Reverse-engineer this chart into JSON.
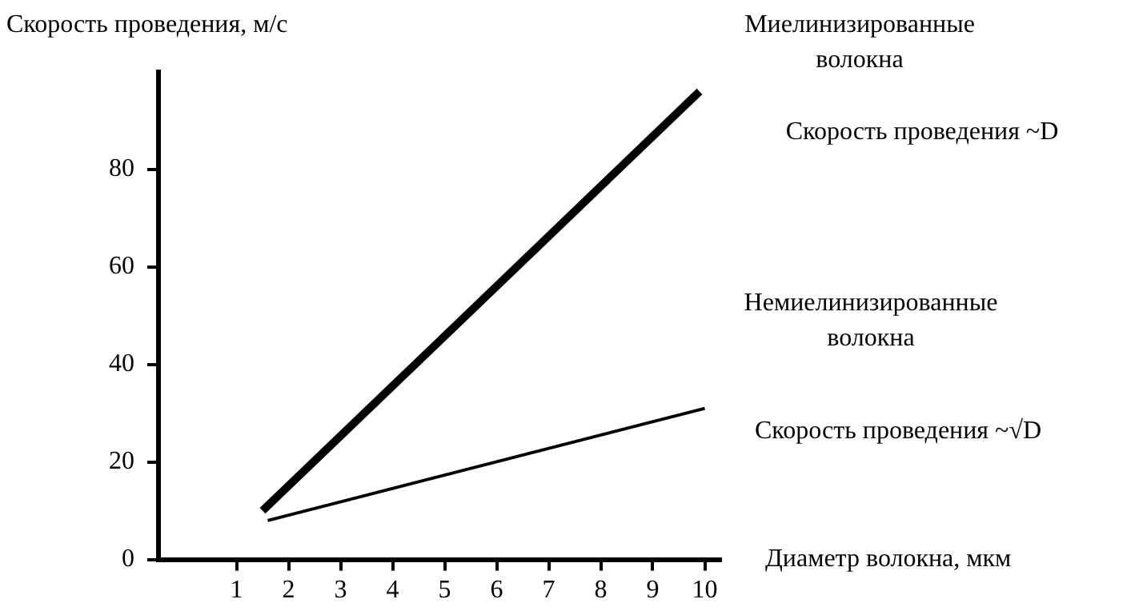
{
  "chart_data": {
    "type": "line",
    "title": "Скорость проведения, м/с",
    "xlabel": "Диаметр волокна, мкм",
    "xlim": [
      -0.5,
      10.3
    ],
    "xticks": [
      1,
      2,
      3,
      4,
      5,
      6,
      7,
      8,
      9,
      10
    ],
    "ylim": [
      0,
      100
    ],
    "yticks": [
      0,
      20,
      40,
      60,
      80
    ],
    "grid": false,
    "legend": false,
    "marker": "none",
    "line_style": "solid",
    "series": [
      {
        "name": "Миелинизированные волокна",
        "color": "#000000",
        "x": [
          1.5,
          9.9
        ],
        "values": [
          10,
          96
        ]
      },
      {
        "name": "Немиелинизированные волокна",
        "color": "#000000",
        "x": [
          1.6,
          10
        ],
        "values": [
          8,
          31
        ]
      }
    ],
    "annotations": [
      "Скорость проведения ~D",
      "Скорость проведения ~√D"
    ]
  }
}
